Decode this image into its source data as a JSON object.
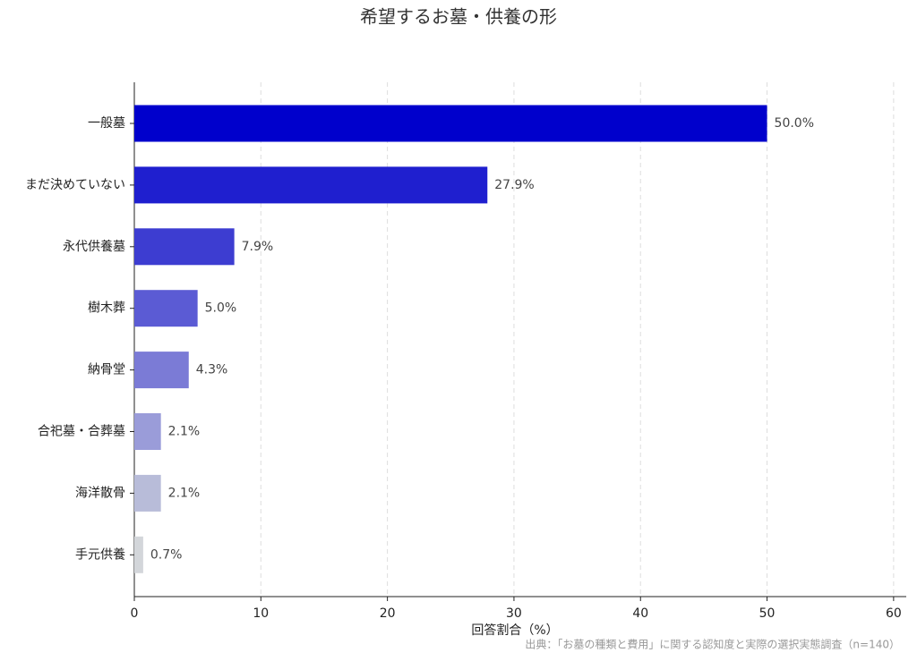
{
  "chart_data": {
    "type": "barh",
    "title": "希望するお墓・供養の形",
    "categories": [
      "一般墓",
      "まだ決めていない",
      "永代供養墓",
      "樹木葬",
      "納骨堂",
      "合祀墓・合葬墓",
      "海洋散骨",
      "手元供養"
    ],
    "values": [
      50.0,
      27.9,
      7.9,
      5.0,
      4.3,
      2.1,
      2.1,
      0.7
    ],
    "value_labels": [
      "50.0%",
      "27.9%",
      "7.9%",
      "5.0%",
      "4.3%",
      "2.1%",
      "2.1%",
      "0.7%"
    ],
    "colors": [
      "#0000cc",
      "#1f1fcf",
      "#3d3dd1",
      "#5b5bd4",
      "#7b7bd6",
      "#9a9cd9",
      "#b8bcd9",
      "#d3d6da"
    ],
    "xlabel": "回答割合（%）",
    "xlim": [
      0,
      61
    ],
    "xticks": [
      0,
      10,
      20,
      30,
      40,
      50,
      60
    ],
    "grid": true,
    "note": "出典：「お墓の種類と費用」に関する認知度と実際の選択実態調査（n=140）"
  }
}
